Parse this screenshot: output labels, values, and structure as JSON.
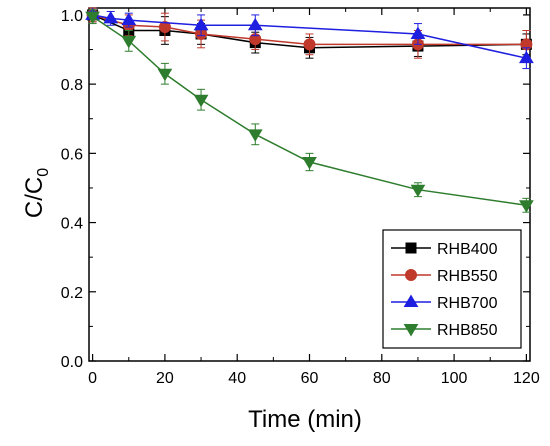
{
  "chart_data": {
    "type": "line",
    "xlabel": "Time (min)",
    "ylabel_main": "C/C",
    "ylabel_sub": "0",
    "xlim": [
      -1,
      121
    ],
    "ylim": [
      0,
      1.02
    ],
    "xticks": [
      0,
      20,
      40,
      60,
      80,
      100,
      120
    ],
    "yticks": [
      0.0,
      0.2,
      0.4,
      0.6,
      0.8,
      1.0
    ],
    "xtick_labels": [
      "0",
      "20",
      "40",
      "60",
      "80",
      "100",
      "120"
    ],
    "ytick_labels": [
      "0.0",
      "0.2",
      "0.4",
      "0.6",
      "0.8",
      "1.0"
    ],
    "legend_position": "bottom-right",
    "series": [
      {
        "name": "RHB400",
        "color": "#000000",
        "marker": "square",
        "x": [
          0,
          10,
          20,
          30,
          45,
          60,
          90,
          120
        ],
        "y": [
          1.0,
          0.955,
          0.955,
          0.945,
          0.92,
          0.905,
          0.91,
          0.915
        ],
        "err": [
          0.02,
          0.03,
          0.04,
          0.03,
          0.03,
          0.03,
          0.03,
          0.03
        ]
      },
      {
        "name": "RHB550",
        "color": "#c0392b",
        "marker": "circle",
        "x": [
          0,
          10,
          20,
          30,
          45,
          60,
          90,
          120
        ],
        "y": [
          1.0,
          0.97,
          0.965,
          0.945,
          0.93,
          0.915,
          0.915,
          0.915
        ],
        "err": [
          0.02,
          0.03,
          0.04,
          0.04,
          0.03,
          0.03,
          0.04,
          0.04
        ]
      },
      {
        "name": "RHB700",
        "color": "#1f1fe0",
        "marker": "triangle-up",
        "x": [
          0,
          5,
          10,
          30,
          45,
          90,
          120
        ],
        "y": [
          1.0,
          0.99,
          0.985,
          0.97,
          0.97,
          0.945,
          0.875
        ],
        "err": [
          0.01,
          0.02,
          0.02,
          0.03,
          0.03,
          0.03,
          0.03
        ]
      },
      {
        "name": "RHB850",
        "color": "#2e7d2e",
        "marker": "triangle-down",
        "x": [
          0,
          10,
          20,
          30,
          45,
          60,
          90,
          120
        ],
        "y": [
          0.995,
          0.925,
          0.83,
          0.755,
          0.655,
          0.575,
          0.495,
          0.45
        ],
        "err": [
          0.02,
          0.03,
          0.03,
          0.03,
          0.03,
          0.025,
          0.02,
          0.02
        ]
      }
    ]
  }
}
